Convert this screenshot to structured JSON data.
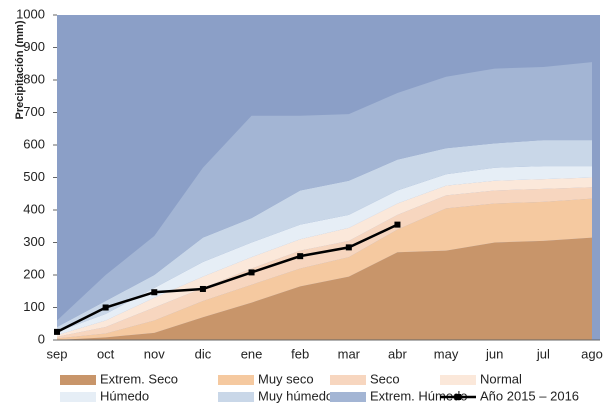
{
  "chart_data": {
    "type": "area",
    "stacked": true,
    "y_axis_label": "Precipitación (mm)",
    "categories": [
      "sep",
      "oct",
      "nov",
      "dic",
      "ene",
      "feb",
      "mar",
      "abr",
      "may",
      "jun",
      "jul",
      "ago"
    ],
    "ylim": [
      0,
      1000
    ],
    "yticks": [
      0,
      100,
      200,
      300,
      400,
      500,
      600,
      700,
      800,
      900,
      1000
    ],
    "background": "#8b9fc7",
    "series": [
      {
        "name": "Extrem. Seco",
        "color": "#c8956a",
        "values": [
          0,
          8,
          22,
          70,
          115,
          165,
          195,
          270,
          275,
          300,
          305,
          315
        ]
      },
      {
        "name": "Muy seco",
        "color": "#f5c9a0",
        "values": [
          5,
          12,
          38,
          50,
          55,
          55,
          60,
          70,
          130,
          120,
          120,
          120
        ]
      },
      {
        "name": "Seco",
        "color": "#f7d6bf",
        "values": [
          5,
          20,
          40,
          40,
          50,
          55,
          50,
          45,
          40,
          40,
          40,
          35
        ]
      },
      {
        "name": "Normal",
        "color": "#fbe8da",
        "values": [
          5,
          20,
          30,
          35,
          35,
          35,
          40,
          35,
          30,
          30,
          30,
          30
        ]
      },
      {
        "name": "Húmedo",
        "color": "#e6eef6",
        "values": [
          10,
          20,
          30,
          45,
          45,
          45,
          40,
          40,
          35,
          40,
          40,
          35
        ]
      },
      {
        "name": "Muy húmedo",
        "color": "#c9d7e8",
        "values": [
          15,
          40,
          40,
          75,
          75,
          105,
          105,
          95,
          80,
          75,
          80,
          80
        ]
      },
      {
        "name": "Extrem. Húmedo",
        "color": "#a3b5d4",
        "values": [
          20,
          80,
          120,
          215,
          315,
          230,
          205,
          205,
          220,
          230,
          225,
          240
        ]
      },
      {
        "name": "Año 2015 – 2016",
        "type": "line",
        "color": "#000000",
        "values": [
          25,
          100,
          147,
          157,
          208,
          258,
          285,
          355,
          null,
          null,
          null,
          null
        ]
      }
    ]
  }
}
